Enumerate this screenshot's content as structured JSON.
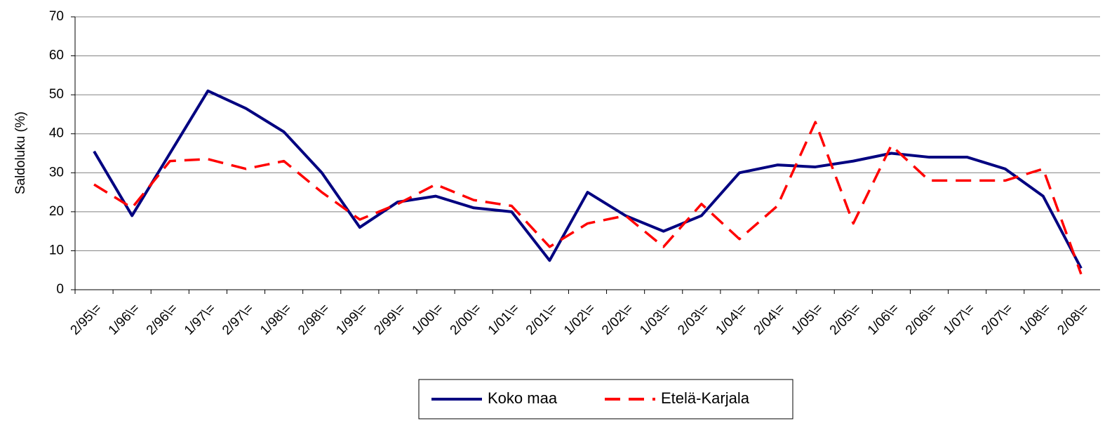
{
  "chart_data": {
    "type": "line",
    "y_label": "Saldoluku (%)",
    "categories": [
      "2/95\\=",
      "1/96\\=",
      "2/96\\=",
      "1/97\\=",
      "2/97\\=",
      "1/98\\=",
      "2/98\\=",
      "1/99\\=",
      "2/99\\=",
      "1/00\\=",
      "2/00\\=",
      "1/01\\=",
      "2/01\\=",
      "1/02\\=",
      "2/02\\=",
      "1/03\\=",
      "2/03\\=",
      "1/04\\=",
      "2/04\\=",
      "1/05\\=",
      "2/05\\=",
      "1/06\\=",
      "2/06\\=",
      "1/07\\=",
      "2/07\\=",
      "1/08\\=",
      "2/08\\="
    ],
    "series": [
      {
        "name": "Koko maa",
        "color": "#000080",
        "dash": false,
        "values": [
          35.5,
          19,
          35,
          51,
          46.5,
          40.5,
          30,
          16,
          22.5,
          24,
          21,
          20,
          7.5,
          25,
          19,
          15,
          19,
          30,
          32,
          31.5,
          33,
          35,
          34,
          34,
          31,
          24,
          5.5
        ]
      },
      {
        "name": "Etelä-Karjala",
        "color": "#ff0000",
        "dash": true,
        "values": [
          27,
          21,
          33,
          33.5,
          31,
          33,
          25,
          18,
          22,
          27,
          23,
          21.5,
          11,
          17,
          19,
          11,
          22,
          13,
          21.5,
          43,
          17,
          37,
          28,
          28,
          28,
          31,
          4
        ]
      }
    ],
    "ylim": [
      0,
      70
    ],
    "yticks": [
      0,
      10,
      20,
      30,
      40,
      50,
      60,
      70
    ],
    "grid": true,
    "legend": "bottom"
  }
}
